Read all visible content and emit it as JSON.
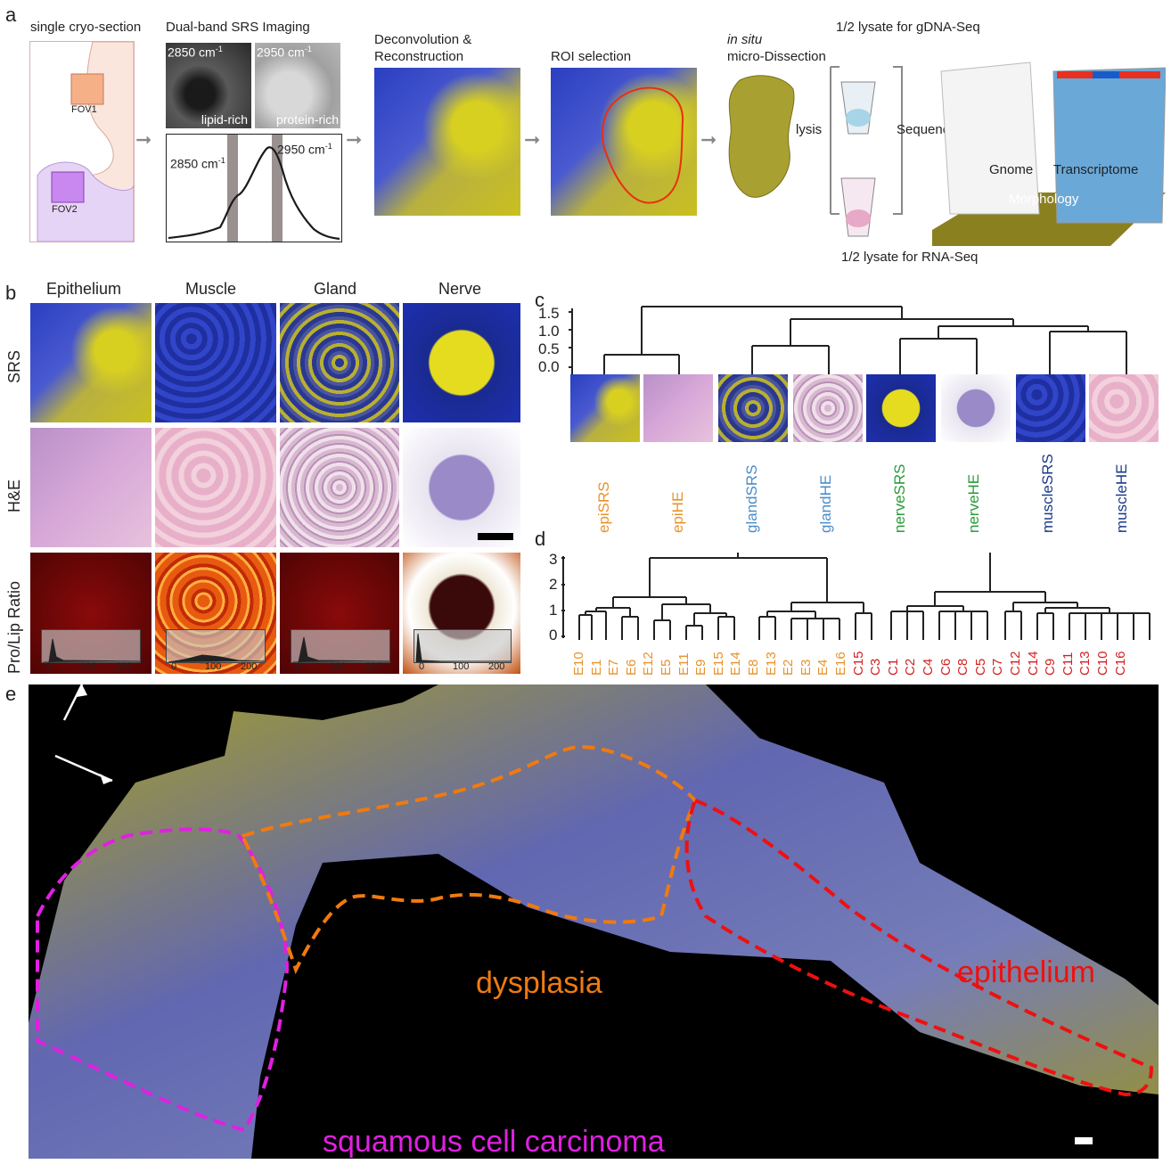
{
  "panel_a": {
    "letter": "a",
    "step1_title": "single cryo-section",
    "fov1": "FOV1",
    "fov2": "FOV2",
    "step2_title": "Dual-band SRS Imaging",
    "img1_label": "2850 cm",
    "img1_sup": "-1",
    "img1_caption": "lipid-rich",
    "img2_label": "2950 cm",
    "img2_sup": "-1",
    "img2_caption": "protein-rich",
    "spec_left": "2850 cm",
    "spec_left_sup": "-1",
    "spec_right": "2950 cm",
    "spec_right_sup": "-1",
    "step3_title_1": "Deconvolution &",
    "step3_title_2": "Reconstruction",
    "step4_title": "ROI selection",
    "step5_title_1": "in situ",
    "step5_title_2": "micro-Dissection",
    "lysis": "lysis",
    "lysate_top": "1/2 lysate for gDNA-Seq",
    "lysate_bottom": "1/2 lysate for RNA-Seq",
    "sequencing": "Sequencing",
    "gnome": "Gnome",
    "transcriptome": "Transcriptome",
    "morphology": "Morphology"
  },
  "panel_b": {
    "letter": "b",
    "columns": [
      "Epithelium",
      "Muscle",
      "Gland",
      "Nerve"
    ],
    "rows": [
      "SRS",
      "H&E",
      "Pro/Lip Ratio"
    ],
    "hist_ticks": [
      "0",
      "100",
      "200"
    ]
  },
  "panel_c": {
    "letter": "c",
    "yticks": [
      "1.5",
      "1.0",
      "0.5",
      "0.0"
    ],
    "leaves": [
      {
        "label": "epiSRS",
        "color": "#e8922a"
      },
      {
        "label": "epiHE",
        "color": "#e8922a"
      },
      {
        "label": "glandSRS",
        "color": "#4a8cc8"
      },
      {
        "label": "glandHE",
        "color": "#4a8cc8"
      },
      {
        "label": "nerveSRS",
        "color": "#2a9a3a"
      },
      {
        "label": "nerveHE",
        "color": "#2a9a3a"
      },
      {
        "label": "muscleSRS",
        "color": "#1a3a8a"
      },
      {
        "label": "muscleHE",
        "color": "#1a3a8a"
      }
    ]
  },
  "panel_d": {
    "letter": "d",
    "yticks": [
      "3",
      "2",
      "1",
      "0"
    ],
    "leaves_orange": [
      "E10",
      "E1",
      "E7",
      "E6",
      "E12",
      "E5",
      "E11",
      "E9",
      "E15",
      "E14",
      "E8",
      "E13",
      "E2",
      "E3",
      "E4",
      "E16"
    ],
    "leaves_red": [
      "C15",
      "C3",
      "C1",
      "C2",
      "C4",
      "C6",
      "C8",
      "C5",
      "C7",
      "C12",
      "C14",
      "C9",
      "C11",
      "C13",
      "C10",
      "C16"
    ],
    "orange": "#e8922a",
    "red": "#d42020"
  },
  "panel_e": {
    "letter": "e",
    "label_scc": "squamous cell carcinoma",
    "label_dysplasia": "dysplasia",
    "label_epithelium": "epithelium",
    "magenta": "#e020e0",
    "orange": "#f07a10",
    "red": "#ee1010"
  }
}
